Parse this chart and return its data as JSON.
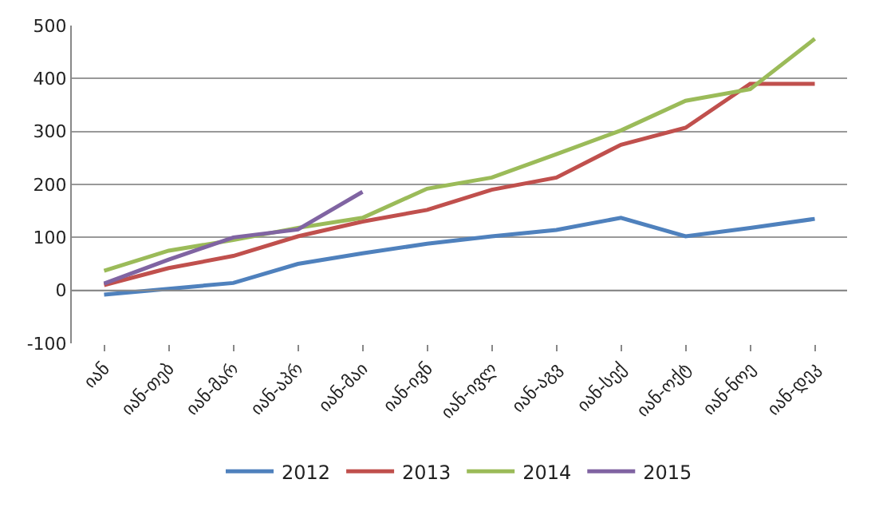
{
  "chart_data": {
    "type": "line",
    "categories": [
      "იან",
      "იან-თებ",
      "იან-მარ",
      "იან-აპრ",
      "იან-მაი",
      "იან-ივნ",
      "იან-ივლ",
      "იან-აგვ",
      "იან-სექ",
      "იან-ოქტ",
      "იან-ნოე",
      "იან-დეკ"
    ],
    "series": [
      {
        "name": "2012",
        "color": "#4f81bd",
        "values": [
          -8,
          3,
          14,
          50,
          70,
          88,
          102,
          114,
          137,
          102,
          118,
          135
        ]
      },
      {
        "name": "2013",
        "color": "#c0504d",
        "values": [
          10,
          42,
          65,
          102,
          130,
          152,
          190,
          213,
          275,
          307,
          390,
          390
        ]
      },
      {
        "name": "2014",
        "color": "#9bbb59",
        "values": [
          37,
          75,
          95,
          118,
          137,
          192,
          213,
          257,
          302,
          358,
          380,
          475
        ]
      },
      {
        "name": "2015",
        "color": "#8064a2",
        "values": [
          13,
          58,
          100,
          115,
          186,
          null,
          null,
          null,
          null,
          null,
          null,
          null
        ]
      }
    ],
    "ylim": [
      -100,
      500
    ],
    "yticks": [
      -100,
      0,
      100,
      200,
      300,
      400,
      500
    ],
    "grid": "y",
    "legend": "bottom",
    "marker": "none",
    "line_style": "solid"
  }
}
